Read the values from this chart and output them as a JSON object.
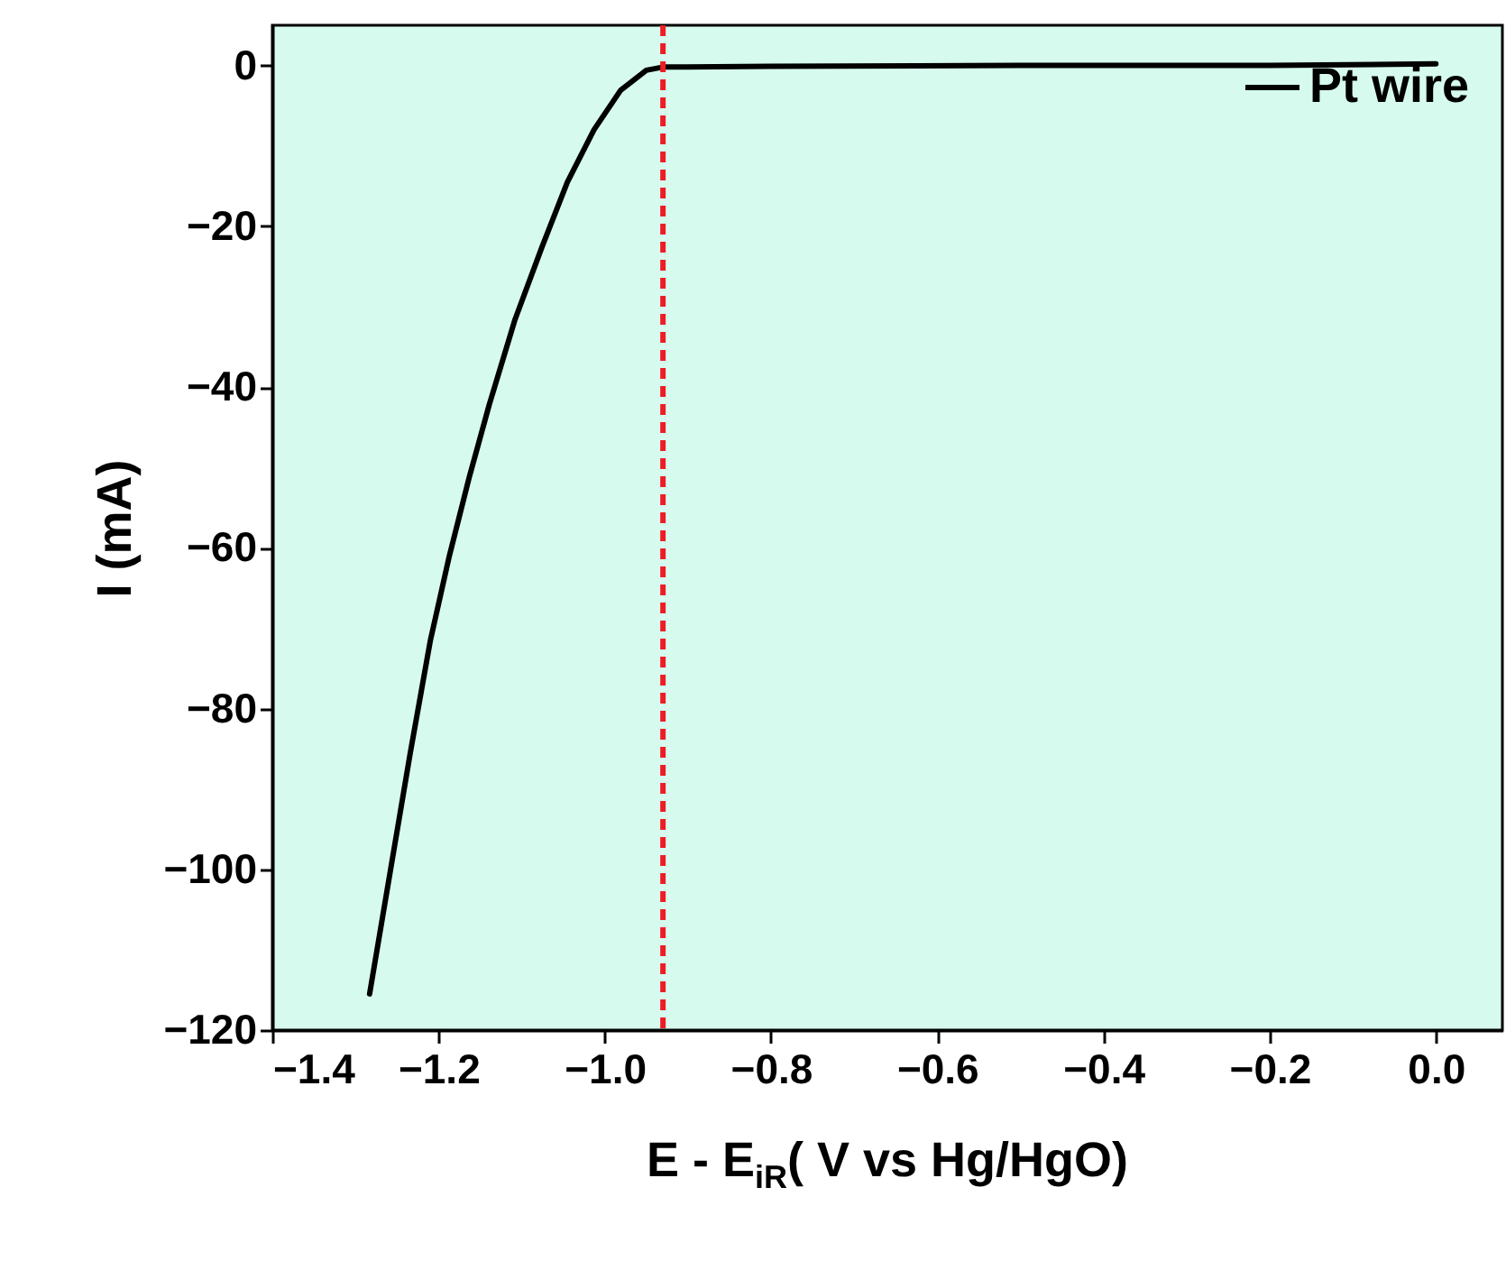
{
  "chart_data": {
    "type": "line",
    "xlabel": "E - E$_{iR}$( V vs Hg/HgO)",
    "ylabel": "I (mA)",
    "xlim": [
      -1.4,
      0.08
    ],
    "ylim": [
      -120,
      5
    ],
    "xticks": [
      {
        "value": -1.4,
        "label": "−1.4"
      },
      {
        "value": -1.2,
        "label": "−1.2"
      },
      {
        "value": -1.0,
        "label": "−1.0"
      },
      {
        "value": -0.8,
        "label": "−0.8"
      },
      {
        "value": -0.6,
        "label": "−0.6"
      },
      {
        "value": -0.4,
        "label": "−0.4"
      },
      {
        "value": -0.2,
        "label": "−0.2"
      },
      {
        "value": 0.0,
        "label": "0.0"
      }
    ],
    "yticks": [
      {
        "value": -120,
        "label": "−120"
      },
      {
        "value": -100,
        "label": "−100"
      },
      {
        "value": -80,
        "label": "−80"
      },
      {
        "value": -60,
        "label": "−60"
      },
      {
        "value": -40,
        "label": "−40"
      },
      {
        "value": -20,
        "label": "−20"
      },
      0
    ],
    "series": [
      {
        "name": "Pt wire",
        "color": "#000000",
        "x": [
          -1.283,
          -1.258,
          -1.234,
          -1.21,
          -1.187,
          -1.163,
          -1.139,
          -1.108,
          -1.076,
          -1.045,
          -1.013,
          -0.981,
          -0.95,
          -0.93,
          -0.8,
          -0.5,
          -0.2,
          0.0
        ],
        "values": [
          -115.5,
          -100.2,
          -85.5,
          -71.6,
          -61.0,
          -51.2,
          -42.2,
          -31.6,
          -22.7,
          -14.5,
          -8.0,
          -3.1,
          -0.6,
          -0.2,
          -0.1,
          0,
          0,
          0.2
        ]
      }
    ],
    "ref_lines": [
      {
        "axis": "x",
        "value": -0.93,
        "color": "#ee1c25",
        "line_style": "dashed"
      }
    ],
    "legend": "top right",
    "marker": "none",
    "line_style": "solid",
    "grid": false
  }
}
